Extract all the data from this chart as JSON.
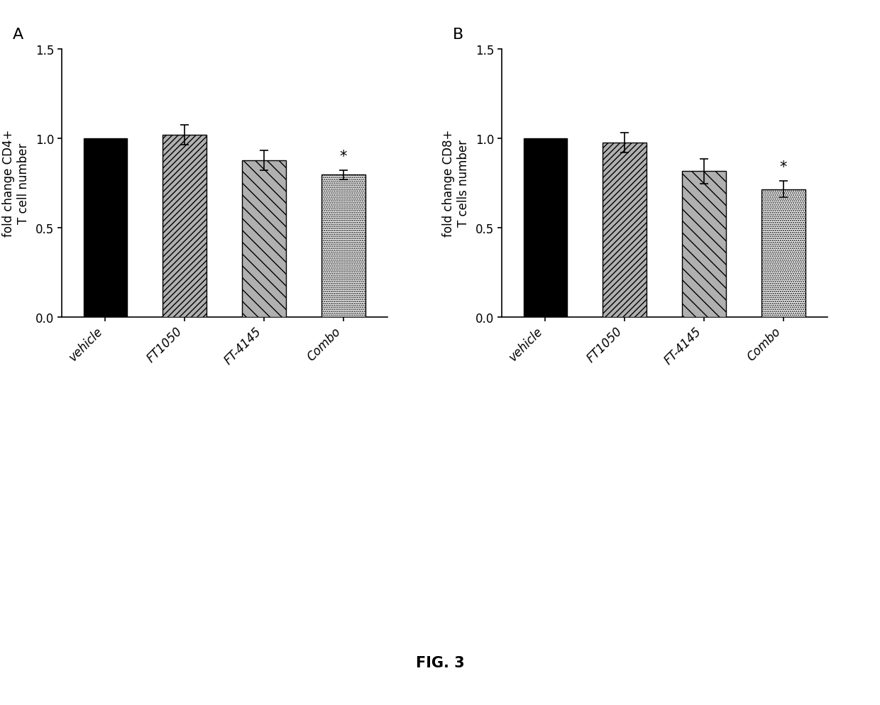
{
  "panel_A": {
    "categories": [
      "vehicle",
      "FT1050",
      "FT-4145",
      "Combo"
    ],
    "values": [
      1.0,
      1.02,
      0.875,
      0.795
    ],
    "errors": [
      0.0,
      0.055,
      0.055,
      0.025
    ],
    "ylabel": "fold change CD4+\nT cell number",
    "panel_label": "A",
    "sig_bar_idx": 3
  },
  "panel_B": {
    "categories": [
      "vehicle",
      "FT1050",
      "FT-4145",
      "Combo"
    ],
    "values": [
      1.0,
      0.975,
      0.815,
      0.715
    ],
    "errors": [
      0.0,
      0.055,
      0.07,
      0.045
    ],
    "ylabel": "fold change CD8+\nT cells number",
    "panel_label": "B",
    "sig_bar_idx": 3
  },
  "ylim": [
    0.0,
    1.5
  ],
  "yticks": [
    0.0,
    0.5,
    1.0,
    1.5
  ],
  "fig_label": "FIG. 3",
  "background_color": "#ffffff",
  "bar_edge_color": "#000000",
  "error_color": "#000000",
  "sig_star": "*",
  "bar_width": 0.55
}
